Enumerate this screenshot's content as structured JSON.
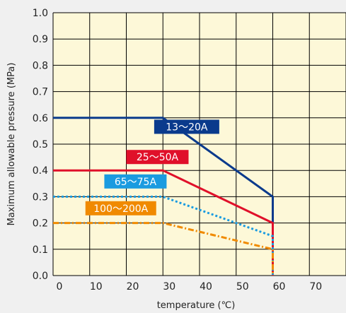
{
  "chart_data": {
    "type": "line",
    "title": "",
    "xlabel": "temperature (℃)",
    "ylabel": "Maximum allowable pressure (MPa)",
    "xlim": [
      0,
      80
    ],
    "ylim": [
      0,
      1.0
    ],
    "xticks": [
      "0",
      "10",
      "20",
      "30",
      "40",
      "50",
      "60",
      "70"
    ],
    "yticks": [
      "0.0",
      "0.1",
      "0.2",
      "0.3",
      "0.4",
      "0.5",
      "0.6",
      "0.7",
      "0.8",
      "0.9",
      "1.0"
    ],
    "grid": true,
    "plot_background": "#fdf8d8",
    "series": [
      {
        "name": "13〜20A",
        "color": "#0a3a8c",
        "dash": "solid",
        "points": [
          [
            0,
            0.6
          ],
          [
            30,
            0.6
          ],
          [
            60,
            0.3
          ],
          [
            60,
            0.0
          ]
        ]
      },
      {
        "name": "25〜50A",
        "color": "#e0102a",
        "dash": "solid",
        "points": [
          [
            0,
            0.4
          ],
          [
            30,
            0.4
          ],
          [
            60,
            0.2
          ],
          [
            60,
            0.0
          ]
        ]
      },
      {
        "name": "65〜75A",
        "color": "#1a9be0",
        "dash": "dotted",
        "points": [
          [
            0,
            0.3
          ],
          [
            30,
            0.3
          ],
          [
            60,
            0.15
          ],
          [
            60,
            0.0
          ]
        ]
      },
      {
        "name": "100〜200A",
        "color": "#f08a00",
        "dash": "dashdot",
        "points": [
          [
            0,
            0.2
          ],
          [
            30,
            0.2
          ],
          [
            60,
            0.1
          ],
          [
            60,
            0.0
          ]
        ]
      }
    ]
  }
}
